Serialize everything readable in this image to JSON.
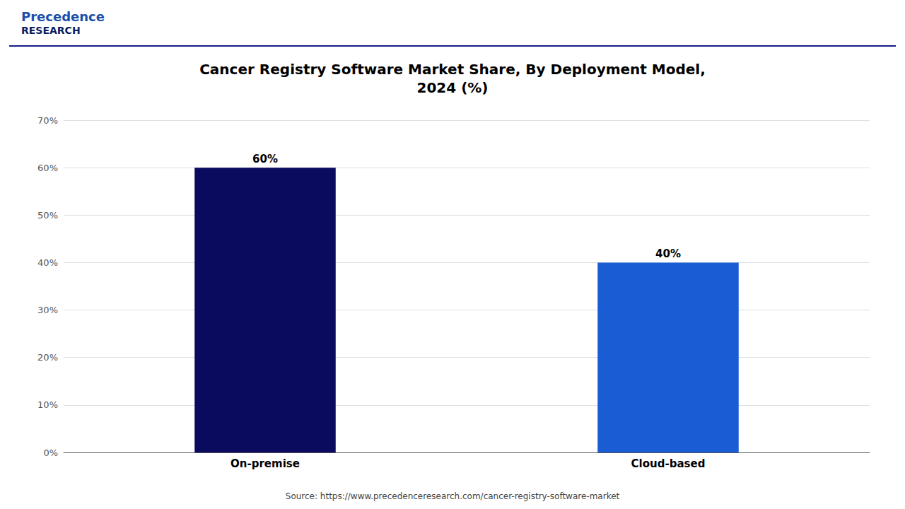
{
  "chart_data": {
    "type": "bar",
    "title": "Cancer Registry Software Market Share, By Deployment Model,\n2024 (%)",
    "categories": [
      "On-premise",
      "Cloud-based"
    ],
    "values": [
      60,
      40
    ],
    "value_labels": [
      "60%",
      "40%"
    ],
    "colors": [
      "#0a0a5e",
      "#1a5cd4"
    ],
    "data_labels": true,
    "ylim": [
      0,
      70
    ],
    "yticks": [
      {
        "value": 0,
        "label": "0%"
      },
      {
        "value": 10,
        "label": "10%"
      },
      {
        "value": 20,
        "label": "20%"
      },
      {
        "value": 30,
        "label": "30%"
      },
      {
        "value": 40,
        "label": "40%"
      },
      {
        "value": 50,
        "label": "50%"
      },
      {
        "value": 60,
        "label": "60%"
      },
      {
        "value": 70,
        "label": "70%"
      }
    ],
    "grid": true,
    "annotations": [
      "Precedence",
      "RESEARCH",
      "Source: https://www.precedenceresearch.com/cancer-registry-software-market"
    ]
  }
}
